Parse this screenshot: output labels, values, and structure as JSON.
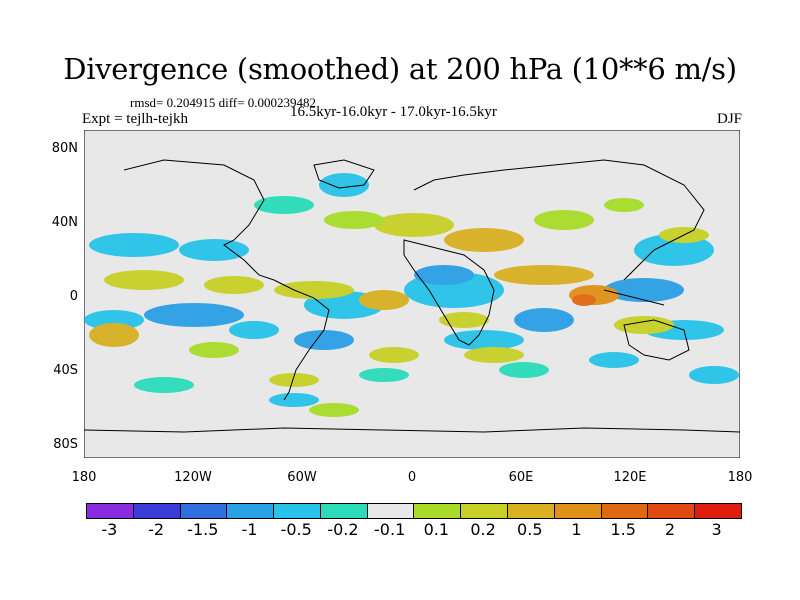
{
  "title": "Divergence (smoothed) at 200 hPa (10**6 m/s)",
  "stats": "rmsd= 0.204915 diff= 0.000239482",
  "left_label": "Expt = tejlh-tejkh",
  "center_label": "16.5kyr-16.0kyr - 17.0kyr-16.5kyr",
  "right_label": "DJF",
  "y_ticks": [
    "80N",
    "40N",
    "0",
    "40S",
    "80S"
  ],
  "x_ticks": [
    "180",
    "120W",
    "60W",
    "0",
    "60E",
    "120E",
    "180"
  ],
  "colorbar": {
    "colors": [
      "#8a2be2",
      "#3b3bd8",
      "#2f6fe0",
      "#2aa0e6",
      "#27c3e8",
      "#2adcb9",
      "#e8e8e8",
      "#a8dc28",
      "#c8d028",
      "#d8b020",
      "#e09018",
      "#e06810",
      "#e04a10",
      "#e01e10"
    ],
    "labels": [
      "-3",
      "-2",
      "-1.5",
      "-1",
      "-0.5",
      "-0.2",
      "-0.1",
      "0.1",
      "0.2",
      "0.5",
      "1",
      "1.5",
      "2",
      "3"
    ]
  }
}
